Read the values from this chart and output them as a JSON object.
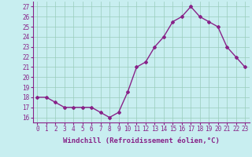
{
  "x": [
    0,
    1,
    2,
    3,
    4,
    5,
    6,
    7,
    8,
    9,
    10,
    11,
    12,
    13,
    14,
    15,
    16,
    17,
    18,
    19,
    20,
    21,
    22,
    23
  ],
  "y": [
    18.0,
    18.0,
    17.5,
    17.0,
    17.0,
    17.0,
    17.0,
    16.5,
    16.0,
    16.5,
    18.5,
    21.0,
    21.5,
    23.0,
    24.0,
    25.5,
    26.0,
    27.0,
    26.0,
    25.5,
    25.0,
    23.0,
    22.0,
    21.0
  ],
  "line_color": "#882288",
  "marker": "D",
  "marker_size": 2.0,
  "linewidth": 1.0,
  "xlabel": "Windchill (Refroidissement éolien,°C)",
  "xlabel_fontsize": 6.5,
  "ylabel_ticks": [
    16,
    17,
    18,
    19,
    20,
    21,
    22,
    23,
    24,
    25,
    26,
    27
  ],
  "xlim": [
    -0.5,
    23.5
  ],
  "ylim": [
    15.5,
    27.5
  ],
  "bg_color": "#c8eef0",
  "grid_color": "#99ccbb",
  "tick_fontsize": 5.5,
  "font_family": "monospace"
}
